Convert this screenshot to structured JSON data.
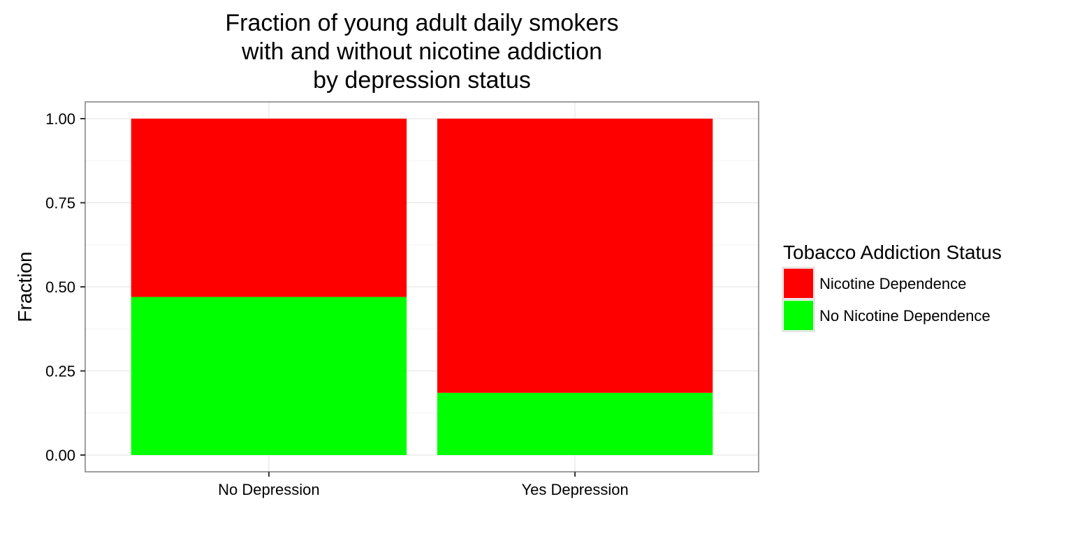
{
  "chart_data": {
    "type": "bar",
    "stacked": true,
    "title_lines": [
      "Fraction of young adult daily smokers",
      "with and without nicotine addiction",
      "by depression status"
    ],
    "xlabel": "",
    "ylabel": "Fraction",
    "ylim": [
      0,
      1
    ],
    "y_ticks": [
      "0.00",
      "0.25",
      "0.50",
      "0.75",
      "1.00"
    ],
    "categories": [
      "No Depression",
      "Yes Depression"
    ],
    "series": [
      {
        "name": "No Nicotine Dependence",
        "color": "#00ff00",
        "values": [
          0.47,
          0.185
        ]
      },
      {
        "name": "Nicotine Dependence",
        "color": "#ff0000",
        "values": [
          0.53,
          0.815
        ]
      }
    ],
    "legend": {
      "title": "Tobacco Addiction Status",
      "position": "right",
      "entries": [
        "Nicotine Dependence",
        "No Nicotine Dependence"
      ]
    },
    "grid": true
  }
}
